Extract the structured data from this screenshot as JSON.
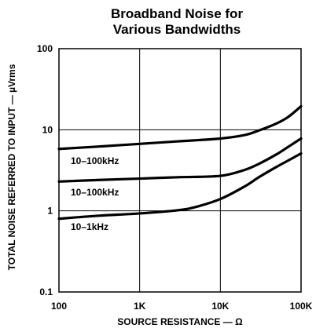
{
  "chart_data": {
    "type": "line",
    "title_lines": [
      "Broadband Noise for",
      "Various Bandwidths"
    ],
    "xlabel": "SOURCE RESISTANCE — Ω",
    "ylabel": "TOTAL NOISE REFERRED TO INPUT — µVrms",
    "x_scale": "log",
    "y_scale": "log",
    "xlim": [
      100,
      100000
    ],
    "ylim": [
      0.1,
      100
    ],
    "x_ticks": [
      {
        "value": 100,
        "label": "100"
      },
      {
        "value": 1000,
        "label": "1K"
      },
      {
        "value": 10000,
        "label": "10K"
      },
      {
        "value": 100000,
        "label": "100K"
      }
    ],
    "y_ticks": [
      {
        "value": 0.1,
        "label": "0.1"
      },
      {
        "value": 1,
        "label": "1"
      },
      {
        "value": 10,
        "label": "10"
      },
      {
        "value": 100,
        "label": "100"
      }
    ],
    "grid": true,
    "series": [
      {
        "name": "10–100kHz",
        "label_at": {
          "x": 140,
          "y": 3.8
        },
        "points": [
          [
            100,
            5.8
          ],
          [
            300,
            6.2
          ],
          [
            1000,
            6.7
          ],
          [
            3000,
            7.2
          ],
          [
            10000,
            7.8
          ],
          [
            20000,
            8.6
          ],
          [
            30000,
            9.8
          ],
          [
            50000,
            12.0
          ],
          [
            70000,
            14.5
          ],
          [
            100000,
            19.5
          ]
        ]
      },
      {
        "name": "10–100kHz",
        "label_at": {
          "x": 140,
          "y": 1.55
        },
        "points": [
          [
            100,
            2.3
          ],
          [
            300,
            2.4
          ],
          [
            1000,
            2.5
          ],
          [
            3000,
            2.6
          ],
          [
            10000,
            2.7
          ],
          [
            20000,
            3.2
          ],
          [
            30000,
            3.8
          ],
          [
            50000,
            5.0
          ],
          [
            70000,
            6.2
          ],
          [
            100000,
            7.8
          ]
        ]
      },
      {
        "name": "10–1kHz",
        "label_at": {
          "x": 140,
          "y": 0.58
        },
        "points": [
          [
            100,
            0.8
          ],
          [
            300,
            0.87
          ],
          [
            1000,
            0.93
          ],
          [
            3000,
            1.02
          ],
          [
            5000,
            1.12
          ],
          [
            10000,
            1.4
          ],
          [
            20000,
            2.0
          ],
          [
            30000,
            2.6
          ],
          [
            50000,
            3.5
          ],
          [
            70000,
            4.2
          ],
          [
            100000,
            5.1
          ]
        ]
      }
    ]
  }
}
